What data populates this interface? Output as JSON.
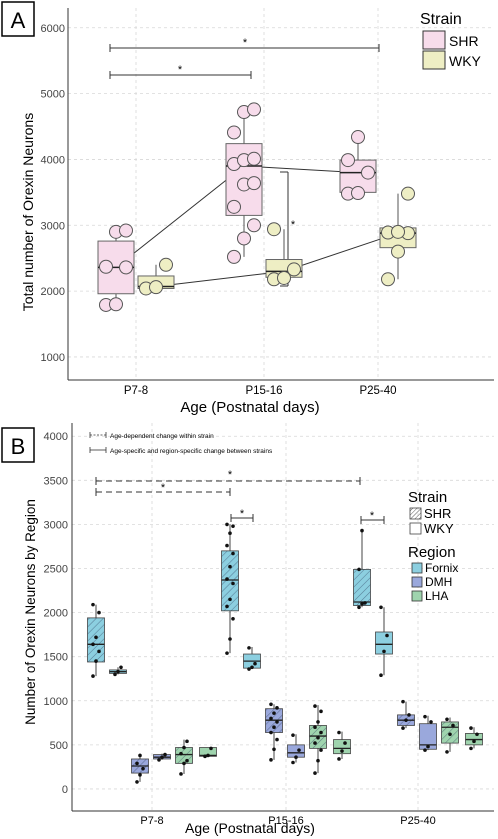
{
  "chart_data": [
    {
      "panel_label": "A",
      "type": "box",
      "xlabel": "Age (Postnatal days)",
      "ylabel": "Total number of Orexin Neurons",
      "ylim": [
        650,
        6300
      ],
      "yticks": [
        1000,
        2000,
        3000,
        4000,
        5000,
        6000
      ],
      "categories": [
        "P7-8",
        "P15-16",
        "P25-40"
      ],
      "legend": {
        "title": "Strain",
        "position": "top-right",
        "entries": [
          "SHR",
          "WKY"
        ]
      },
      "series": [
        {
          "name": "SHR",
          "color": "#f7dceb",
          "boxes": [
            {
              "category": "P7-8",
              "q1": 1960,
              "median": 2360,
              "q3": 2760,
              "whisker_low": 1790,
              "whisker_high": 2920,
              "points": [
                1790,
                1800,
                2360,
                2370,
                2900,
                2920
              ]
            },
            {
              "category": "P15-16",
              "q1": 3150,
              "median": 3900,
              "q3": 4240,
              "whisker_low": 2520,
              "whisker_high": 4760,
              "points": [
                2520,
                2800,
                3000,
                3280,
                3620,
                3640,
                3930,
                3990,
                4010,
                4410,
                4720,
                4760
              ]
            },
            {
              "category": "P25-40",
              "q1": 3500,
              "median": 3800,
              "q3": 3990,
              "whisker_low": 3480,
              "whisker_high": 4340,
              "points": [
                3480,
                3490,
                3800,
                3990,
                4340
              ]
            }
          ]
        },
        {
          "name": "WKY",
          "color": "#eeeec4",
          "boxes": [
            {
              "category": "P7-8",
              "q1": 2040,
              "median": 2070,
              "q3": 2230,
              "whisker_low": 2040,
              "whisker_high": 2400,
              "points": [
                2040,
                2060,
                2400
              ]
            },
            {
              "category": "P15-16",
              "q1": 2210,
              "median": 2300,
              "q3": 2480,
              "whisker_low": 2180,
              "whisker_high": 2940,
              "points": [
                2180,
                2200,
                2330,
                2940
              ]
            },
            {
              "category": "P25-40",
              "q1": 2660,
              "median": 2880,
              "q3": 2960,
              "whisker_low": 2180,
              "whisker_high": 3480,
              "points": [
                2180,
                2600,
                2880,
                2890,
                2900,
                3480
              ]
            }
          ]
        }
      ],
      "annotations": [
        "*",
        "*",
        "*"
      ]
    },
    {
      "panel_label": "B",
      "type": "box",
      "xlabel": "Age (Postnatal days)",
      "ylabel": "Number of Orexin Neurons by Region",
      "ylim": [
        -250,
        4150
      ],
      "yticks": [
        0,
        500,
        1000,
        1500,
        2000,
        2500,
        3000,
        3500,
        4000
      ],
      "categories": [
        "P7-8",
        "P15-16",
        "P25-40"
      ],
      "notes": [
        "Age-dependent change within strain",
        "Age-specific and region-specific change between strains"
      ],
      "legend_strain": {
        "title": "Strain",
        "entries": [
          "SHR",
          "WKY"
        ]
      },
      "legend_region": {
        "title": "Region",
        "entries": [
          "Fornix",
          "DMH",
          "LHA"
        ]
      },
      "region_colors": {
        "Fornix": "#8ccfe0",
        "DMH": "#9aa8dc",
        "LHA": "#9fd4ae"
      },
      "boxes": [
        {
          "category": "P7-8",
          "region": "Fornix",
          "strain": "SHR",
          "q1": 1440,
          "median": 1640,
          "q3": 1940,
          "whisker_low": 1280,
          "whisker_high": 2090,
          "points": [
            1280,
            1450,
            1560,
            1640,
            1720,
            2000,
            2090
          ]
        },
        {
          "category": "P7-8",
          "region": "Fornix",
          "strain": "WKY",
          "q1": 1310,
          "median": 1330,
          "q3": 1350,
          "whisker_low": 1300,
          "whisker_high": 1380,
          "points": [
            1300,
            1330,
            1380
          ]
        },
        {
          "category": "P7-8",
          "region": "DMH",
          "strain": "SHR",
          "q1": 180,
          "median": 260,
          "q3": 340,
          "whisker_low": 80,
          "whisker_high": 400,
          "points": [
            80,
            160,
            230,
            290,
            380
          ]
        },
        {
          "category": "P7-8",
          "region": "DMH",
          "strain": "WKY",
          "q1": 340,
          "median": 360,
          "q3": 390,
          "whisker_low": 330,
          "whisker_high": 400,
          "points": [
            330,
            360,
            390
          ]
        },
        {
          "category": "P7-8",
          "region": "LHA",
          "strain": "SHR",
          "q1": 290,
          "median": 390,
          "q3": 470,
          "whisker_low": 170,
          "whisker_high": 560,
          "points": [
            170,
            290,
            320,
            400,
            470,
            540
          ]
        },
        {
          "category": "P7-8",
          "region": "LHA",
          "strain": "WKY",
          "q1": 370,
          "median": 380,
          "q3": 470,
          "whisker_low": 370,
          "whisker_high": 470,
          "points": [
            370,
            380,
            460
          ]
        },
        {
          "category": "P15-16",
          "region": "Fornix",
          "strain": "SHR",
          "q1": 2020,
          "median": 2370,
          "q3": 2700,
          "whisker_low": 1540,
          "whisker_high": 3000,
          "points": [
            1540,
            1700,
            1930,
            2070,
            2150,
            2330,
            2380,
            2520,
            2670,
            2760,
            2900,
            2980,
            3000
          ]
        },
        {
          "category": "P15-16",
          "region": "Fornix",
          "strain": "WKY",
          "q1": 1370,
          "median": 1450,
          "q3": 1530,
          "whisker_low": 1360,
          "whisker_high": 1610,
          "points": [
            1360,
            1380,
            1420,
            1600
          ]
        },
        {
          "category": "P15-16",
          "region": "DMH",
          "strain": "SHR",
          "q1": 640,
          "median": 780,
          "q3": 910,
          "whisker_low": 330,
          "whisker_high": 960,
          "points": [
            330,
            450,
            560,
            640,
            700,
            760,
            800,
            860,
            920,
            960
          ]
        },
        {
          "category": "P15-16",
          "region": "DMH",
          "strain": "WKY",
          "q1": 360,
          "median": 410,
          "q3": 500,
          "whisker_low": 300,
          "whisker_high": 620,
          "points": [
            300,
            360,
            440,
            610
          ]
        },
        {
          "category": "P15-16",
          "region": "LHA",
          "strain": "SHR",
          "q1": 460,
          "median": 600,
          "q3": 720,
          "whisker_low": 180,
          "whisker_high": 950,
          "points": [
            180,
            320,
            440,
            520,
            580,
            640,
            700,
            760,
            880,
            940
          ]
        },
        {
          "category": "P15-16",
          "region": "LHA",
          "strain": "WKY",
          "q1": 400,
          "median": 460,
          "q3": 560,
          "whisker_low": 340,
          "whisker_high": 650,
          "points": [
            340,
            430,
            520,
            640
          ]
        },
        {
          "category": "P25-40",
          "region": "Fornix",
          "strain": "SHR",
          "q1": 2080,
          "median": 2120,
          "q3": 2490,
          "whisker_low": 2060,
          "whisker_high": 2930,
          "points": [
            2060,
            2100,
            2110,
            2490,
            2930
          ]
        },
        {
          "category": "P25-40",
          "region": "Fornix",
          "strain": "WKY",
          "q1": 1530,
          "median": 1640,
          "q3": 1780,
          "whisker_low": 1290,
          "whisker_high": 2060,
          "points": [
            1290,
            1560,
            1740,
            2060
          ]
        },
        {
          "category": "P25-40",
          "region": "DMH",
          "strain": "SHR",
          "q1": 720,
          "median": 780,
          "q3": 840,
          "whisker_low": 690,
          "whisker_high": 990,
          "points": [
            690,
            780,
            840,
            990
          ]
        },
        {
          "category": "P25-40",
          "region": "DMH",
          "strain": "WKY",
          "q1": 450,
          "median": 500,
          "q3": 740,
          "whisker_low": 440,
          "whisker_high": 830,
          "points": [
            440,
            480,
            760,
            820
          ]
        },
        {
          "category": "P25-40",
          "region": "LHA",
          "strain": "SHR",
          "q1": 520,
          "median": 700,
          "q3": 760,
          "whisker_low": 420,
          "whisker_high": 810,
          "points": [
            420,
            620,
            720,
            790
          ]
        },
        {
          "category": "P25-40",
          "region": "LHA",
          "strain": "WKY",
          "q1": 500,
          "median": 560,
          "q3": 630,
          "whisker_low": 460,
          "whisker_high": 700,
          "points": [
            460,
            540,
            620,
            690
          ]
        }
      ],
      "annotations": [
        "*",
        "*",
        "*",
        "*"
      ]
    }
  ]
}
